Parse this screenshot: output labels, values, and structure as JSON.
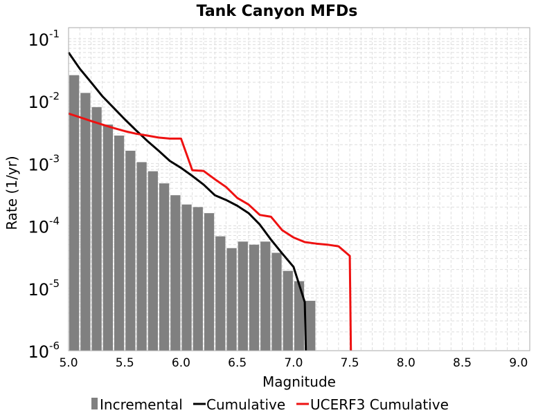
{
  "chart_data": {
    "type": "bar",
    "title": "Tank Canyon MFDs",
    "xlabel": "Magnitude",
    "ylabel": "Rate (1/yr)",
    "xlim": [
      5.0,
      9.1
    ],
    "ylim": [
      1e-06,
      0.15
    ],
    "yscale": "log",
    "grid": true,
    "legend_position": "bottom",
    "xticks": [
      "5.0",
      "5.5",
      "6.0",
      "6.5",
      "7.0",
      "7.5",
      "8.0",
      "8.5",
      "9.0"
    ],
    "yticks": [
      {
        "base": "10",
        "exp": "-1"
      },
      {
        "base": "10",
        "exp": "-2"
      },
      {
        "base": "10",
        "exp": "-3"
      },
      {
        "base": "10",
        "exp": "-4"
      },
      {
        "base": "10",
        "exp": "-5"
      },
      {
        "base": "10",
        "exp": "-6"
      }
    ],
    "series": [
      {
        "name": "Incremental",
        "kind": "bar",
        "color": "#808080",
        "x": [
          5.05,
          5.15,
          5.25,
          5.35,
          5.45,
          5.55,
          5.65,
          5.75,
          5.85,
          5.95,
          6.05,
          6.15,
          6.25,
          6.35,
          6.45,
          6.55,
          6.65,
          6.75,
          6.85,
          6.95,
          7.05,
          7.15
        ],
        "values": [
          0.026,
          0.0135,
          0.008,
          0.0042,
          0.0028,
          0.0016,
          0.00105,
          0.00075,
          0.00048,
          0.00031,
          0.00022,
          0.0002,
          0.00016,
          6.8e-05,
          4.4e-05,
          5.6e-05,
          5e-05,
          5.6e-05,
          3.7e-05,
          1.9e-05,
          1.3e-05,
          6.3e-06
        ]
      },
      {
        "name": "Cumulative",
        "kind": "line",
        "color": "#000000",
        "x": [
          5.0,
          5.1,
          5.2,
          5.3,
          5.4,
          5.5,
          5.6,
          5.7,
          5.8,
          5.9,
          6.0,
          6.1,
          6.2,
          6.3,
          6.4,
          6.5,
          6.6,
          6.7,
          6.8,
          6.9,
          7.0,
          7.1,
          7.11
        ],
        "values": [
          0.06,
          0.033,
          0.02,
          0.012,
          0.0078,
          0.0051,
          0.0034,
          0.0023,
          0.0016,
          0.0011,
          0.00085,
          0.00063,
          0.00046,
          0.00031,
          0.00026,
          0.00021,
          0.00016,
          0.000105,
          6e-05,
          3.6e-05,
          2.2e-05,
          6e-06,
          1e-06
        ]
      },
      {
        "name": "UCERF3 Cumulative",
        "kind": "line",
        "color": "#ee1111",
        "x": [
          5.0,
          5.1,
          5.2,
          5.3,
          5.4,
          5.5,
          5.6,
          5.7,
          5.8,
          5.9,
          6.0,
          6.1,
          6.2,
          6.3,
          6.4,
          6.5,
          6.6,
          6.7,
          6.8,
          6.9,
          7.0,
          7.1,
          7.2,
          7.3,
          7.4,
          7.5,
          7.51
        ],
        "values": [
          0.0063,
          0.0055,
          0.0048,
          0.0042,
          0.0037,
          0.0033,
          0.003,
          0.0028,
          0.0026,
          0.0025,
          0.0025,
          0.00078,
          0.00076,
          0.00056,
          0.00042,
          0.00028,
          0.00022,
          0.00015,
          0.00014,
          8.5e-05,
          6.5e-05,
          5.5e-05,
          5.2e-05,
          5e-05,
          4.7e-05,
          3.3e-05,
          1e-06
        ]
      }
    ]
  }
}
